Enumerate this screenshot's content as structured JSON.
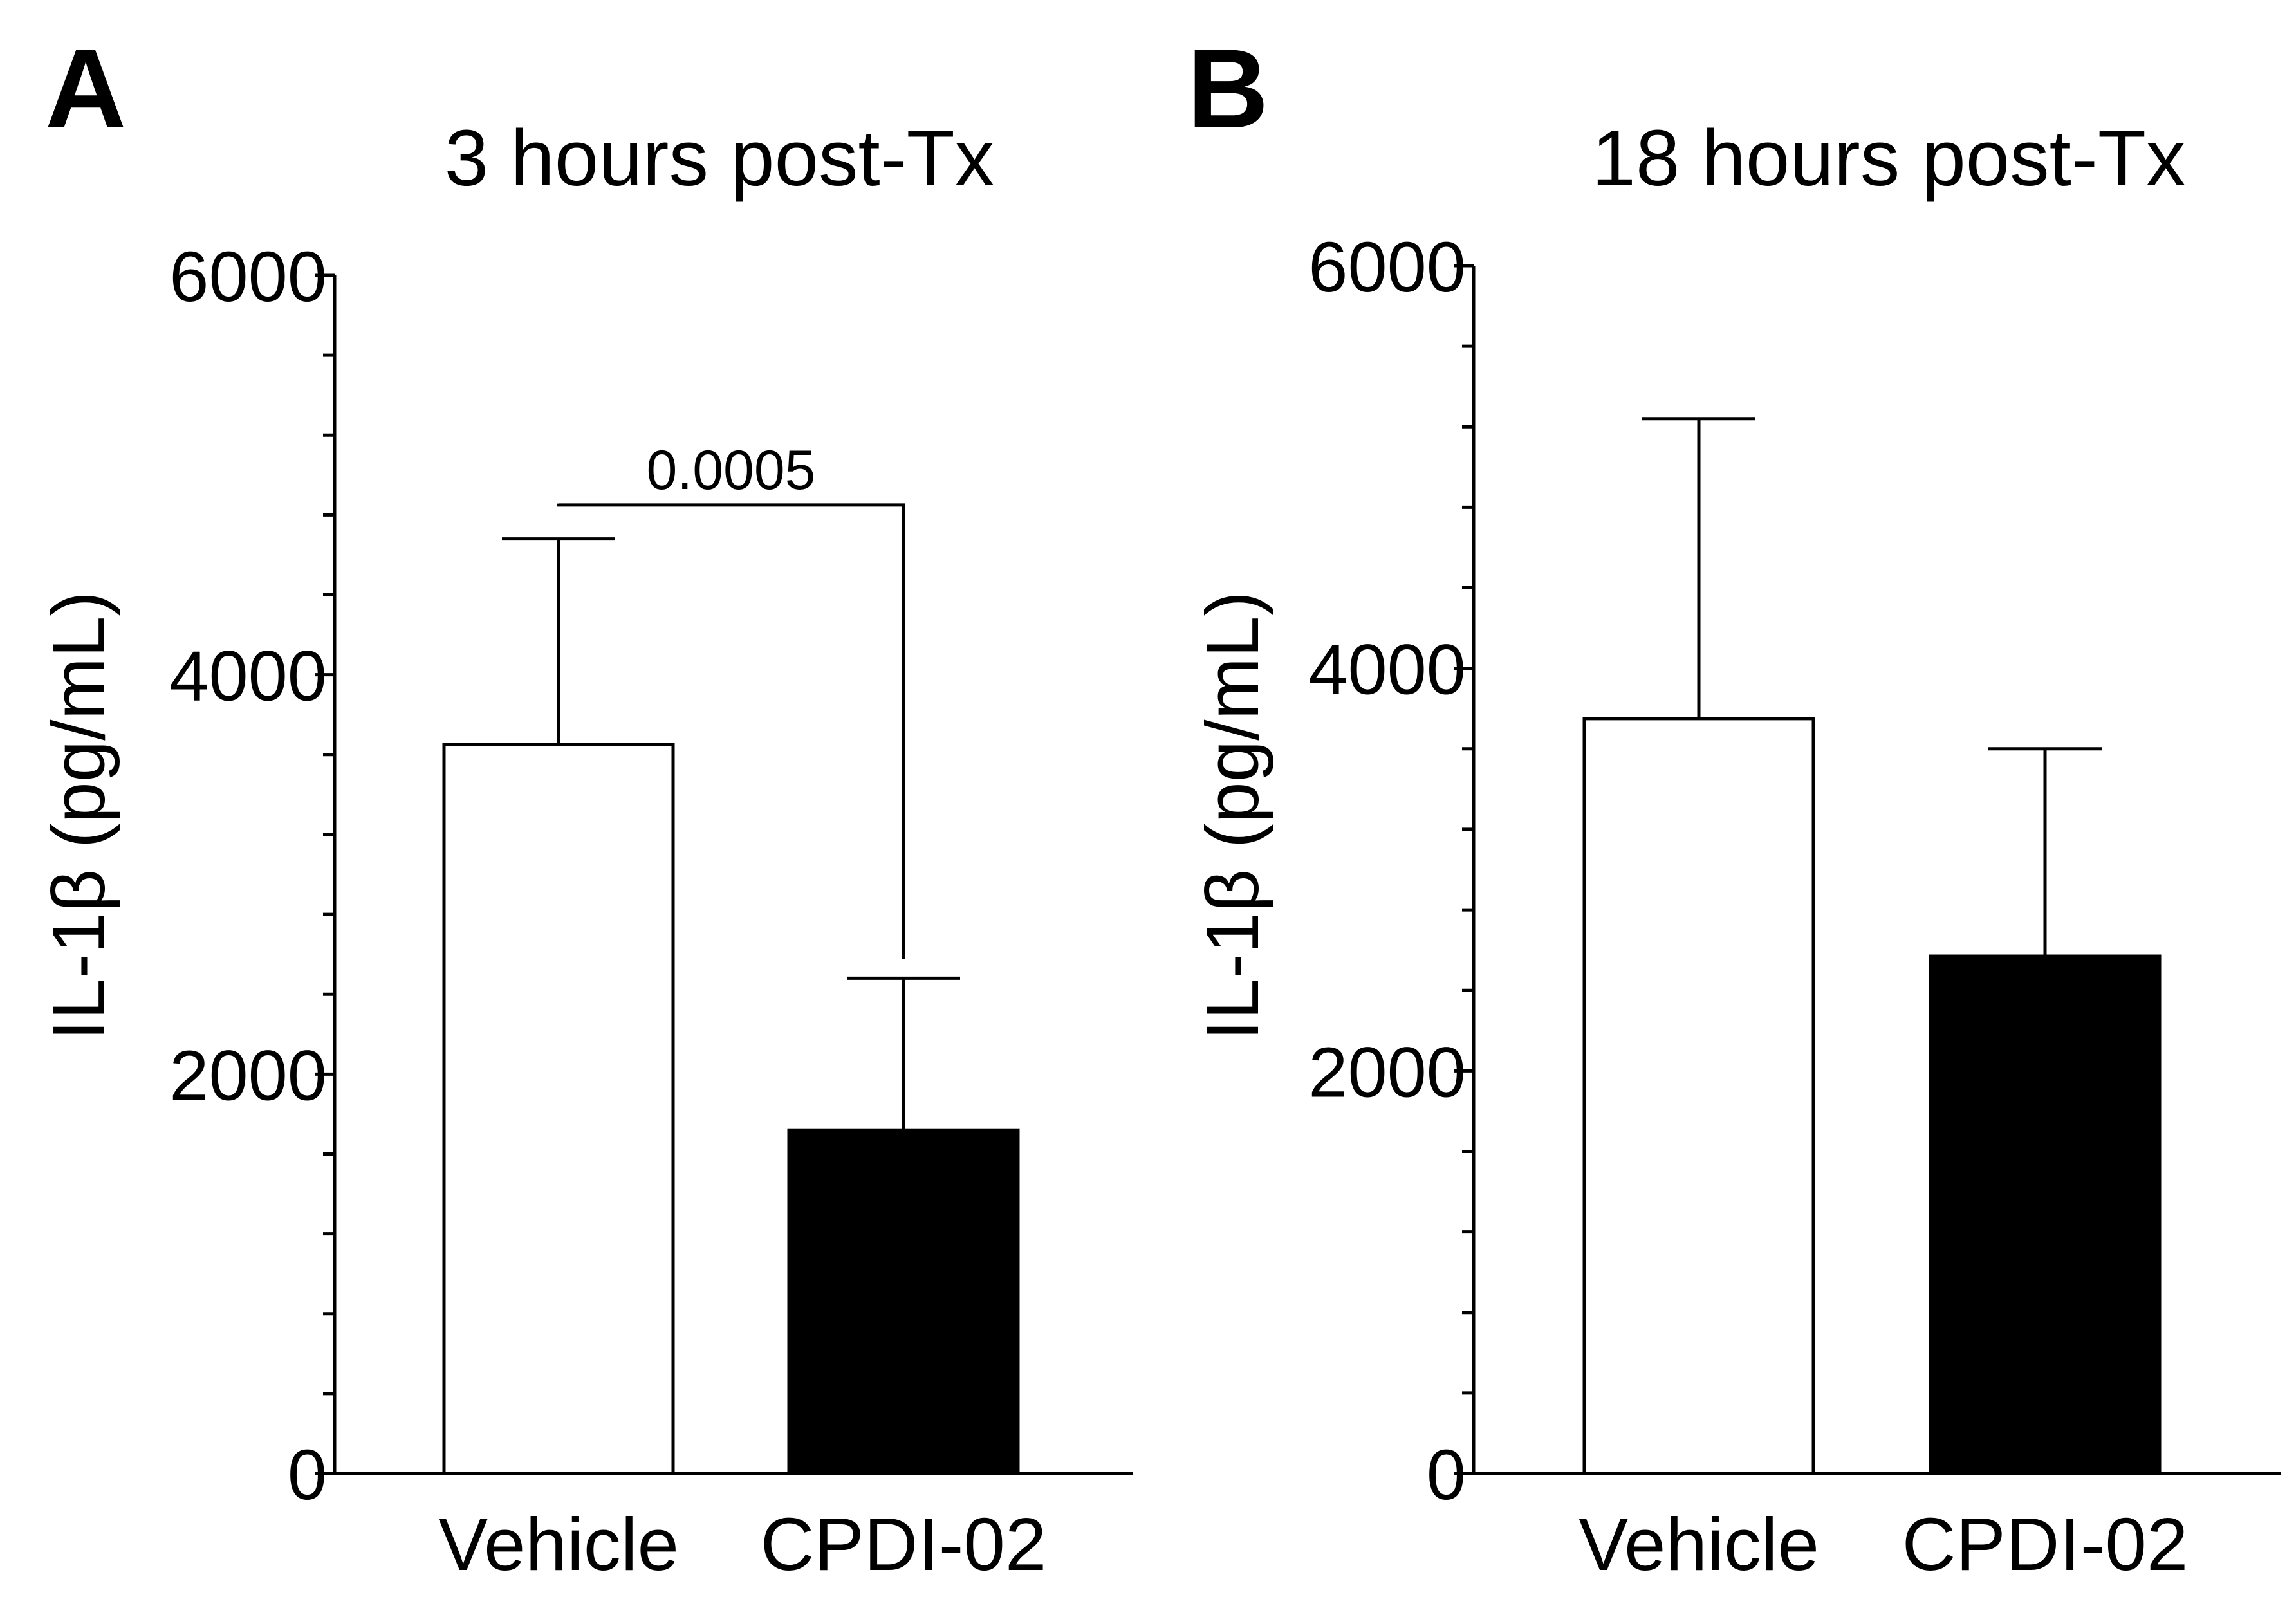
{
  "figure": {
    "panels": [
      {
        "letter": "A"
      },
      {
        "letter": "B"
      }
    ]
  },
  "chart_data": [
    {
      "type": "bar",
      "panel": "A",
      "title": "3 hours post-Tx",
      "xlabel": "",
      "ylabel": "IL-1β (pg/mL)",
      "ylim": [
        0,
        6000
      ],
      "yticks": [
        0,
        2000,
        4000,
        6000
      ],
      "minor_tick_step": 400,
      "grid": false,
      "categories": [
        "Vehicle",
        "CPDI-02"
      ],
      "values": [
        3650,
        1720
      ],
      "errors": [
        1030,
        760
      ],
      "bar_colors": [
        "#ffffff",
        "#000000"
      ],
      "annotations": [
        {
          "type": "significance",
          "text": "0.0005",
          "between": [
            "Vehicle",
            "CPDI-02"
          ],
          "y": 4850
        }
      ]
    },
    {
      "type": "bar",
      "panel": "B",
      "title": "18 hours post-Tx",
      "xlabel": "",
      "ylabel": "IL-1β (pg/mL)",
      "ylim": [
        0,
        6000
      ],
      "yticks": [
        0,
        2000,
        4000,
        6000
      ],
      "minor_tick_step": 400,
      "grid": false,
      "categories": [
        "Vehicle",
        "CPDI-02"
      ],
      "values": [
        3750,
        2570
      ],
      "errors": [
        1490,
        1030
      ],
      "bar_colors": [
        "#ffffff",
        "#000000"
      ],
      "annotations": []
    }
  ]
}
